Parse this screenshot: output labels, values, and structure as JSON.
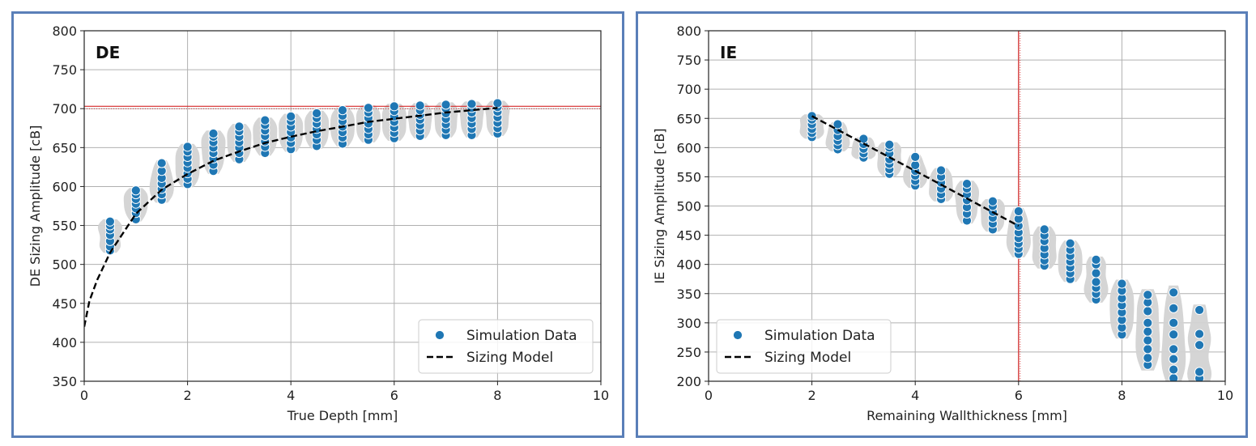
{
  "chart_data": [
    {
      "type": "scatter",
      "tag": "DE",
      "xlabel": "True Depth [mm]",
      "ylabel": "DE Sizing Amplitude [cB]",
      "xlim": [
        0,
        10
      ],
      "ylim": [
        350,
        800
      ],
      "xticks": [
        "0",
        "2",
        "4",
        "6",
        "8",
        "10"
      ],
      "yticks": [
        "350",
        "400",
        "450",
        "500",
        "550",
        "600",
        "650",
        "700",
        "750",
        "800"
      ],
      "grid": true,
      "legend_position": "bottom-right",
      "threshold_line": {
        "orientation": "horizontal",
        "value": 703,
        "color": "#d62728"
      },
      "marker_color": "#1f77b4",
      "violin_color": "#d3d3d3",
      "series": [
        {
          "name": "Simulation Data",
          "kind": "points",
          "points": [
            [
              0.5,
              518
            ],
            [
              0.5,
              523
            ],
            [
              0.5,
              530
            ],
            [
              0.5,
              538
            ],
            [
              0.5,
              545
            ],
            [
              0.5,
              550
            ],
            [
              0.5,
              555
            ],
            [
              1.0,
              558
            ],
            [
              1.0,
              566
            ],
            [
              1.0,
              572
            ],
            [
              1.0,
              578
            ],
            [
              1.0,
              584
            ],
            [
              1.0,
              590
            ],
            [
              1.0,
              595
            ],
            [
              1.5,
              583
            ],
            [
              1.5,
              590
            ],
            [
              1.5,
              597
            ],
            [
              1.5,
              604
            ],
            [
              1.5,
              611
            ],
            [
              1.5,
              620
            ],
            [
              1.5,
              630
            ],
            [
              2.0,
              603
            ],
            [
              2.0,
              610
            ],
            [
              2.0,
              617
            ],
            [
              2.0,
              624
            ],
            [
              2.0,
              631
            ],
            [
              2.0,
              638
            ],
            [
              2.0,
              645
            ],
            [
              2.0,
              651
            ],
            [
              2.5,
              620
            ],
            [
              2.5,
              628
            ],
            [
              2.5,
              636
            ],
            [
              2.5,
              643
            ],
            [
              2.5,
              650
            ],
            [
              2.5,
              657
            ],
            [
              2.5,
              664
            ],
            [
              2.5,
              668
            ],
            [
              3.0,
              635
            ],
            [
              3.0,
              643
            ],
            [
              3.0,
              650
            ],
            [
              3.0,
              657
            ],
            [
              3.0,
              664
            ],
            [
              3.0,
              671
            ],
            [
              3.0,
              677
            ],
            [
              3.5,
              643
            ],
            [
              3.5,
              651
            ],
            [
              3.5,
              658
            ],
            [
              3.5,
              665
            ],
            [
              3.5,
              672
            ],
            [
              3.5,
              679
            ],
            [
              3.5,
              685
            ],
            [
              4.0,
              648
            ],
            [
              4.0,
              656
            ],
            [
              4.0,
              663
            ],
            [
              4.0,
              670
            ],
            [
              4.0,
              677
            ],
            [
              4.0,
              684
            ],
            [
              4.0,
              690
            ],
            [
              4.5,
              652
            ],
            [
              4.5,
              660
            ],
            [
              4.5,
              667
            ],
            [
              4.5,
              674
            ],
            [
              4.5,
              681
            ],
            [
              4.5,
              688
            ],
            [
              4.5,
              694
            ],
            [
              5.0,
              655
            ],
            [
              5.0,
              663
            ],
            [
              5.0,
              670
            ],
            [
              5.0,
              677
            ],
            [
              5.0,
              684
            ],
            [
              5.0,
              691
            ],
            [
              5.0,
              698
            ],
            [
              5.5,
              660
            ],
            [
              5.5,
              667
            ],
            [
              5.5,
              674
            ],
            [
              5.5,
              681
            ],
            [
              5.5,
              688
            ],
            [
              5.5,
              695
            ],
            [
              5.5,
              701
            ],
            [
              6.0,
              662
            ],
            [
              6.0,
              669
            ],
            [
              6.0,
              676
            ],
            [
              6.0,
              683
            ],
            [
              6.0,
              690
            ],
            [
              6.0,
              697
            ],
            [
              6.0,
              703
            ],
            [
              6.5,
              665
            ],
            [
              6.5,
              672
            ],
            [
              6.5,
              679
            ],
            [
              6.5,
              686
            ],
            [
              6.5,
              692
            ],
            [
              6.5,
              698
            ],
            [
              6.5,
              704
            ],
            [
              7.0,
              666
            ],
            [
              7.0,
              673
            ],
            [
              7.0,
              680
            ],
            [
              7.0,
              687
            ],
            [
              7.0,
              694
            ],
            [
              7.0,
              700
            ],
            [
              7.0,
              705
            ],
            [
              7.5,
              666
            ],
            [
              7.5,
              674
            ],
            [
              7.5,
              681
            ],
            [
              7.5,
              688
            ],
            [
              7.5,
              695
            ],
            [
              7.5,
              701
            ],
            [
              7.5,
              706
            ],
            [
              8.0,
              668
            ],
            [
              8.0,
              675
            ],
            [
              8.0,
              682
            ],
            [
              8.0,
              689
            ],
            [
              8.0,
              696
            ],
            [
              8.0,
              702
            ],
            [
              8.0,
              707
            ]
          ]
        },
        {
          "name": "Sizing Model",
          "kind": "dashed-line",
          "points": [
            [
              0.0,
              420
            ],
            [
              0.1,
              453
            ],
            [
              0.25,
              480
            ],
            [
              0.5,
              515
            ],
            [
              0.75,
              540
            ],
            [
              1.0,
              565
            ],
            [
              1.5,
              596
            ],
            [
              2.0,
              616
            ],
            [
              2.5,
              633
            ],
            [
              3.0,
              645
            ],
            [
              3.5,
              656
            ],
            [
              4.0,
              664
            ],
            [
              4.5,
              671
            ],
            [
              5.0,
              677
            ],
            [
              5.5,
              683
            ],
            [
              6.0,
              687
            ],
            [
              6.5,
              691
            ],
            [
              7.0,
              695
            ],
            [
              7.5,
              698
            ],
            [
              8.0,
              701
            ]
          ]
        }
      ]
    },
    {
      "type": "scatter",
      "tag": "IE",
      "xlabel": "Remaining Wallthickness [mm]",
      "ylabel": "IE Sizing Amplitude [cB]",
      "xlim": [
        0,
        10
      ],
      "ylim": [
        200,
        800
      ],
      "xticks": [
        "0",
        "2",
        "4",
        "6",
        "8",
        "10"
      ],
      "yticks": [
        "200",
        "250",
        "300",
        "350",
        "400",
        "450",
        "500",
        "550",
        "600",
        "650",
        "700",
        "750",
        "800"
      ],
      "grid": true,
      "legend_position": "bottom-left",
      "threshold_line": {
        "orientation": "vertical",
        "value": 6,
        "color": "#d62728"
      },
      "marker_color": "#1f77b4",
      "violin_color": "#d3d3d3",
      "series": [
        {
          "name": "Simulation Data",
          "kind": "points",
          "points": [
            [
              2.0,
              618
            ],
            [
              2.0,
              625
            ],
            [
              2.0,
              632
            ],
            [
              2.0,
              640
            ],
            [
              2.0,
              648
            ],
            [
              2.0,
              654
            ],
            [
              2.5,
              597
            ],
            [
              2.5,
              604
            ],
            [
              2.5,
              612
            ],
            [
              2.5,
              620
            ],
            [
              2.5,
              630
            ],
            [
              2.5,
              640
            ],
            [
              3.0,
              583
            ],
            [
              3.0,
              590
            ],
            [
              3.0,
              598
            ],
            [
              3.0,
              606
            ],
            [
              3.0,
              615
            ],
            [
              3.5,
              555
            ],
            [
              3.5,
              563
            ],
            [
              3.5,
              572
            ],
            [
              3.5,
              580
            ],
            [
              3.5,
              590
            ],
            [
              3.5,
              600
            ],
            [
              3.5,
              605
            ],
            [
              4.0,
              535
            ],
            [
              4.0,
              543
            ],
            [
              4.0,
              552
            ],
            [
              4.0,
              560
            ],
            [
              4.0,
              570
            ],
            [
              4.0,
              584
            ],
            [
              4.5,
              512
            ],
            [
              4.5,
              520
            ],
            [
              4.5,
              530
            ],
            [
              4.5,
              540
            ],
            [
              4.5,
              550
            ],
            [
              4.5,
              561
            ],
            [
              5.0,
              475
            ],
            [
              5.0,
              487
            ],
            [
              5.0,
              498
            ],
            [
              5.0,
              510
            ],
            [
              5.0,
              520
            ],
            [
              5.0,
              530
            ],
            [
              5.0,
              538
            ],
            [
              5.5,
              460
            ],
            [
              5.5,
              470
            ],
            [
              5.5,
              480
            ],
            [
              5.5,
              490
            ],
            [
              5.5,
              500
            ],
            [
              5.5,
              508
            ],
            [
              6.0,
              418
            ],
            [
              6.0,
              427
            ],
            [
              6.0,
              436
            ],
            [
              6.0,
              445
            ],
            [
              6.0,
              455
            ],
            [
              6.0,
              466
            ],
            [
              6.0,
              478
            ],
            [
              6.0,
              491
            ],
            [
              6.5,
              398
            ],
            [
              6.5,
              407
            ],
            [
              6.5,
              417
            ],
            [
              6.5,
              428
            ],
            [
              6.5,
              440
            ],
            [
              6.5,
              450
            ],
            [
              6.5,
              460
            ],
            [
              7.0,
              375
            ],
            [
              7.0,
              385
            ],
            [
              7.0,
              395
            ],
            [
              7.0,
              405
            ],
            [
              7.0,
              415
            ],
            [
              7.0,
              425
            ],
            [
              7.0,
              436
            ],
            [
              7.5,
              340
            ],
            [
              7.5,
              350
            ],
            [
              7.5,
              360
            ],
            [
              7.5,
              370
            ],
            [
              7.5,
              385
            ],
            [
              7.5,
              400
            ],
            [
              7.5,
              408
            ],
            [
              8.0,
              280
            ],
            [
              8.0,
              292
            ],
            [
              8.0,
              305
            ],
            [
              8.0,
              318
            ],
            [
              8.0,
              330
            ],
            [
              8.0,
              342
            ],
            [
              8.0,
              355
            ],
            [
              8.0,
              367
            ],
            [
              8.5,
              228
            ],
            [
              8.5,
              240
            ],
            [
              8.5,
              255
            ],
            [
              8.5,
              270
            ],
            [
              8.5,
              285
            ],
            [
              8.5,
              300
            ],
            [
              8.5,
              320
            ],
            [
              8.5,
              335
            ],
            [
              8.5,
              348
            ],
            [
              9.0,
              205
            ],
            [
              9.0,
              220
            ],
            [
              9.0,
              238
            ],
            [
              9.0,
              255
            ],
            [
              9.0,
              280
            ],
            [
              9.0,
              300
            ],
            [
              9.0,
              325
            ],
            [
              9.0,
              352
            ],
            [
              9.5,
              205
            ],
            [
              9.5,
              216
            ],
            [
              9.5,
              262
            ],
            [
              9.5,
              281
            ],
            [
              9.5,
              322
            ]
          ]
        },
        {
          "name": "Sizing Model",
          "kind": "dashed-line",
          "points": [
            [
              2.0,
              654
            ],
            [
              6.0,
              466
            ]
          ]
        }
      ]
    }
  ]
}
